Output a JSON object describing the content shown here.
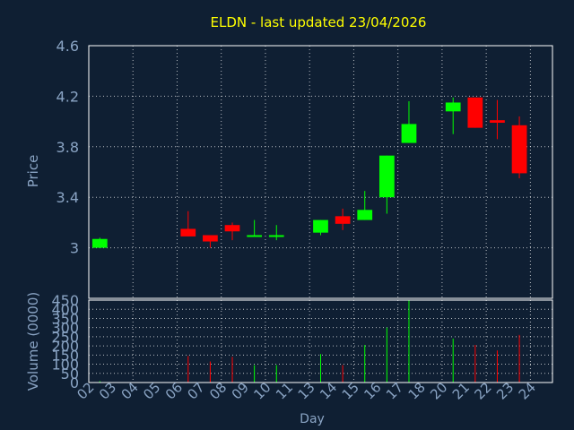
{
  "chart_data": [
    {
      "type": "candlestick",
      "title": "ELDN - last updated 23/04/2026",
      "ylabel": "Price",
      "ylim": [
        2.6,
        4.6
      ],
      "yticks": [
        "3",
        "3.4",
        "3.8",
        "4.2",
        "4.6"
      ],
      "grid": true,
      "colors": {
        "up": "#00ff00",
        "down": "#ff0000",
        "background": "#0f1f33",
        "grid": "#ffffff",
        "axis_text": "#8aa4c4",
        "title": "#ffff00"
      },
      "candles": [
        {
          "day": "02",
          "open": 3.0,
          "close": 3.07,
          "high": 3.08,
          "low": 3.0
        },
        {
          "day": "06",
          "open": 3.15,
          "close": 3.09,
          "high": 3.29,
          "low": 3.09
        },
        {
          "day": "07",
          "open": 3.1,
          "close": 3.05,
          "high": 3.1,
          "low": 3.0
        },
        {
          "day": "08",
          "open": 3.18,
          "close": 3.13,
          "high": 3.2,
          "low": 3.06
        },
        {
          "day": "09",
          "open": 3.09,
          "close": 3.1,
          "high": 3.22,
          "low": 3.09
        },
        {
          "day": "10",
          "open": 3.09,
          "close": 3.1,
          "high": 3.18,
          "low": 3.06
        },
        {
          "day": "13",
          "open": 3.12,
          "close": 3.22,
          "high": 3.22,
          "low": 3.1
        },
        {
          "day": "14",
          "open": 3.25,
          "close": 3.19,
          "high": 3.31,
          "low": 3.14
        },
        {
          "day": "15",
          "open": 3.22,
          "close": 3.3,
          "high": 3.45,
          "low": 3.22
        },
        {
          "day": "16",
          "open": 3.4,
          "close": 3.73,
          "high": 3.73,
          "low": 3.27
        },
        {
          "day": "17",
          "open": 3.83,
          "close": 3.98,
          "high": 4.16,
          "low": 3.83
        },
        {
          "day": "20",
          "open": 4.08,
          "close": 4.15,
          "high": 4.19,
          "low": 3.9
        },
        {
          "day": "21",
          "open": 4.19,
          "close": 3.95,
          "high": 4.19,
          "low": 3.95
        },
        {
          "day": "22",
          "open": 4.01,
          "close": 3.99,
          "high": 4.17,
          "low": 3.86
        },
        {
          "day": "23",
          "open": 3.97,
          "close": 3.59,
          "high": 4.04,
          "low": 3.55
        }
      ]
    },
    {
      "type": "bar",
      "ylabel": "Volume (0000)",
      "xlabel": "Day",
      "ylim": [
        0,
        450
      ],
      "yticks": [
        "0",
        "50",
        "100",
        "150",
        "200",
        "250",
        "300",
        "350",
        "400",
        "450"
      ],
      "categories": [
        "02",
        "03",
        "04",
        "05",
        "06",
        "07",
        "08",
        "09",
        "10",
        "11",
        "13",
        "14",
        "15",
        "16",
        "17",
        "18",
        "20",
        "21",
        "22",
        "23",
        "24"
      ],
      "bars": [
        {
          "day": "02",
          "value": 8,
          "direction": "up"
        },
        {
          "day": "06",
          "value": 145,
          "direction": "down"
        },
        {
          "day": "07",
          "value": 115,
          "direction": "down"
        },
        {
          "day": "08",
          "value": 140,
          "direction": "down"
        },
        {
          "day": "09",
          "value": 95,
          "direction": "up"
        },
        {
          "day": "10",
          "value": 95,
          "direction": "up"
        },
        {
          "day": "13",
          "value": 155,
          "direction": "up"
        },
        {
          "day": "14",
          "value": 95,
          "direction": "down"
        },
        {
          "day": "15",
          "value": 205,
          "direction": "up"
        },
        {
          "day": "16",
          "value": 300,
          "direction": "up"
        },
        {
          "day": "17",
          "value": 450,
          "direction": "up"
        },
        {
          "day": "20",
          "value": 240,
          "direction": "up"
        },
        {
          "day": "21",
          "value": 205,
          "direction": "down"
        },
        {
          "day": "22",
          "value": 175,
          "direction": "down"
        },
        {
          "day": "23",
          "value": 260,
          "direction": "down"
        }
      ]
    }
  ]
}
